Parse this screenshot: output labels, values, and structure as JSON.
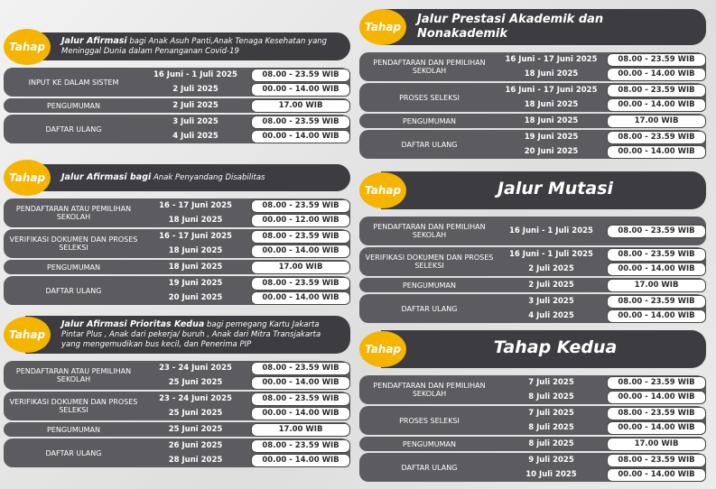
{
  "sections": [
    {
      "badge": "Tahap",
      "title": "Jalur Afirmasi",
      "title_rest": " bagi Anak Asuh Panti,Anak Tenaga Kesehatan yang Meninggal Dunia dalam Penanganan Covid-19",
      "stages": [
        {
          "name": "INPUT KE DALAM SISTEM",
          "slots": [
            {
              "date": "16 Juni - 1 Juli 2025",
              "time": "08.00 - 23.59 WIB"
            },
            {
              "date": "2 Juli 2025",
              "time": "00.00 - 14.00 WIB"
            }
          ]
        },
        {
          "name": "PENGUMUMAN",
          "slots": [
            {
              "date": "2 Juli 2025",
              "time": "17.00 WIB"
            }
          ]
        },
        {
          "name": "DAFTAR ULANG",
          "slots": [
            {
              "date": "3 Juli 2025",
              "time": "08.00 - 23.59 WIB"
            },
            {
              "date": "4 Juli 2025",
              "time": "00.00 - 14.00 WIB"
            }
          ]
        }
      ]
    },
    {
      "badge": "Tahap",
      "title": "Jalur Afirmasi bagi",
      "title_rest": " Anak Penyandang Disabilitas",
      "stages": [
        {
          "name": "PENDAFTARAN ATAU PEMILIHAN SEKOLAH",
          "slots": [
            {
              "date": "16 - 17 Juni  2025",
              "time": "08.00 - 23.59 WIB"
            },
            {
              "date": "18 Juni 2025",
              "time": "00.00 - 12.00 WIB"
            }
          ]
        },
        {
          "name": "VERIFIKASI DOKUMEN DAN PROSES SELEKSI",
          "slots": [
            {
              "date": "16 - 17 Juni  2025",
              "time": "08.00 - 23.59 WIB"
            },
            {
              "date": "18 Juni 2025",
              "time": "00.00 - 14.00 WIB"
            }
          ]
        },
        {
          "name": "PENGUMUMAN",
          "slots": [
            {
              "date": "18  Juni 2025",
              "time": "17.00 WIB"
            }
          ]
        },
        {
          "name": "DAFTAR ULANG",
          "slots": [
            {
              "date": "19 Juni 2025",
              "time": "08.00 - 23.59 WIB"
            },
            {
              "date": "20 Juni 2025",
              "time": "00.00 - 14.00 WIB"
            }
          ]
        }
      ]
    },
    {
      "badge": "Tahap",
      "title": "Jalur Afirmasi Prioritas Kedua",
      "title_rest": "  bagi pemegang Kartu Jakarta Pintar Plus , Anak dari pekerja/ buruh ,  Anak dari Mitra Transjakarta yang mengemudikan bus kecil, dan Penerima PIP",
      "stages": [
        {
          "name": "PENDAFTARAN ATAU PEMILIHAN SEKOLAH",
          "slots": [
            {
              "date": "23 - 24 Juni  2025",
              "time": "08.00 - 23.59 WIB"
            },
            {
              "date": "25 Juni 2025",
              "time": "00.00 - 14.00 WIB"
            }
          ]
        },
        {
          "name": "VERIFIKASI DOKUMEN DAN PROSES SELEKSI",
          "slots": [
            {
              "date": "23 - 24 Juni 2025",
              "time": "08.00 - 23.59 WIB"
            },
            {
              "date": "25 Juni 2025",
              "time": "00.00 - 14.00 WIB"
            }
          ]
        },
        {
          "name": "PENGUMUMAN",
          "slots": [
            {
              "date": "25  Juni 2025",
              "time": "17.00 WIB"
            }
          ]
        },
        {
          "name": "DAFTAR ULANG",
          "slots": [
            {
              "date": "26 Juni 2025",
              "time": "08.00 - 23.59 WIB"
            },
            {
              "date": "28 Juni 2025",
              "time": "00.00 - 14.00 WIB"
            }
          ]
        }
      ]
    },
    {
      "badge": "Tahap",
      "title": "Jalur Prestasi Akademik dan Nonakademik",
      "stages": [
        {
          "name": "PENDAFTARAN DAN PEMILIHAN SEKOLAH",
          "slots": [
            {
              "date": "16 Juni - 17 Juni 2025",
              "time": "08.00 - 23.59 WIB"
            },
            {
              "date": "18 Juni 2025",
              "time": "00.00 - 14.00 WIB"
            }
          ]
        },
        {
          "name": "PROSES SELEKSI",
          "slots": [
            {
              "date": "16 Juni - 17 Juni 2025",
              "time": "08.00 - 23.59 WIB"
            },
            {
              "date": "18 Juni 2025",
              "time": "00.00 - 14.00 WIB"
            }
          ]
        },
        {
          "name": "PENGUMUMAN",
          "slots": [
            {
              "date": "18 Juni 2025",
              "time": "17.00 WIB"
            }
          ]
        },
        {
          "name": "DAFTAR ULANG",
          "slots": [
            {
              "date": "19 Juni 2025",
              "time": "08.00 - 23.59 WIB"
            },
            {
              "date": "20 Juni 2025",
              "time": "00.00 - 14.00 WIB"
            }
          ]
        }
      ]
    },
    {
      "badge": "Tahap",
      "title": "Jalur Mutasi",
      "stages": [
        {
          "name": "PENDAFTARAN DAN PEMILIHAN SEKOLAH",
          "slots": [
            {
              "date": "16 Juni - 1 Juli 2025",
              "time": "08.00 - 23.59 WIB"
            }
          ]
        },
        {
          "name": "VERIFIKASI DOKUMEN DAN PROSES SELEKSI",
          "slots": [
            {
              "date": "16 Juni - 1 Juli 2025",
              "time": "08.00 - 23.59 WIB"
            },
            {
              "date": "2 Juli 2025",
              "time": "00.00 - 14.00 WIB"
            }
          ]
        },
        {
          "name": "PENGUMUMAN",
          "slots": [
            {
              "date": "2 Juli 2025",
              "time": "17.00 WIB"
            }
          ]
        },
        {
          "name": "DAFTAR ULANG",
          "slots": [
            {
              "date": "3 Juli 2025",
              "time": "08.00 - 23.59 WIB"
            },
            {
              "date": "4 Juli 2025",
              "time": "00.00 - 14.00 WIB"
            }
          ]
        }
      ]
    },
    {
      "badge": "Tahap",
      "title": "Tahap Kedua",
      "stages": [
        {
          "name": "PENDAFTARAN DAN PEMILIHAN SEKOLAH",
          "slots": [
            {
              "date": "7 Juli 2025",
              "time": "08.00 - 23.59 WIB"
            },
            {
              "date": "8 Juli 2025",
              "time": "00.00 - 14.00 WIB"
            }
          ]
        },
        {
          "name": "PROSES SELEKSI",
          "slots": [
            {
              "date": "7 Juli 2025",
              "time": "08.00 - 23.59 WIB"
            },
            {
              "date": "8 Juli 2025",
              "time": "00.00 - 14.00 WIB"
            }
          ]
        },
        {
          "name": "PENGUMUMAN",
          "slots": [
            {
              "date": "8 juli 2025",
              "time": "17.00 WIB"
            }
          ]
        },
        {
          "name": "DAFTAR ULANG",
          "slots": [
            {
              "date": "9 Juli 2025",
              "time": "08.00 - 23.59 WIB"
            },
            {
              "date": "10 Juli 2025",
              "time": "00.00 - 14.00 WIB"
            }
          ]
        }
      ]
    }
  ]
}
